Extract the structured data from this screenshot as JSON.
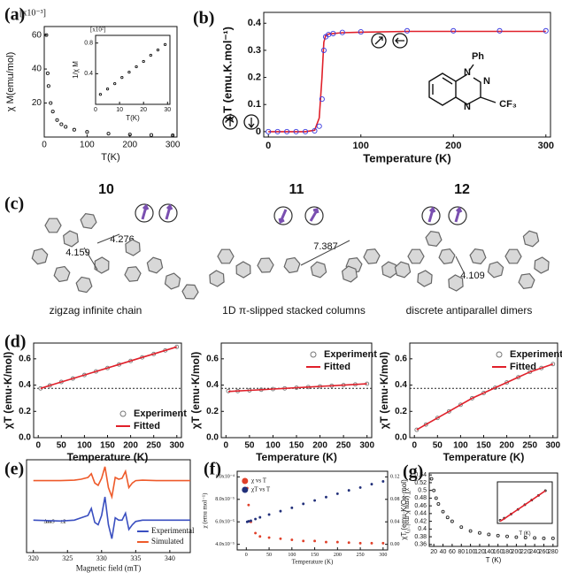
{
  "chart_data": [
    {
      "type": "line",
      "label": "(a)",
      "scale_label": "[x10⁻³]",
      "ylabel": "χ M(emu/mol)",
      "xlabel": "T(K)",
      "x": [
        5,
        8,
        10,
        15,
        20,
        30,
        40,
        50,
        70,
        100,
        150,
        200,
        250,
        300
      ],
      "series": [
        {
          "color": "#111111",
          "mode": "markers",
          "values": [
            60,
            37.5,
            30,
            20,
            15,
            10,
            7.5,
            6,
            4.3,
            3,
            2,
            1.5,
            1.2,
            1
          ]
        }
      ],
      "xlim": [
        0,
        310
      ],
      "ylim": [
        0,
        65
      ],
      "xticks": [
        0,
        100,
        200,
        300
      ],
      "yticks": [
        20,
        40,
        60
      ]
    },
    {
      "type": "line",
      "scale_label": "[x10²]",
      "ylabel": "1/χ M",
      "xlabel": "T(K)",
      "x": [
        2,
        5,
        8,
        11,
        14,
        17,
        20,
        23,
        26,
        29
      ],
      "series": [
        {
          "color": "#111111",
          "mode": "markers",
          "values": [
            0.13,
            0.2,
            0.27,
            0.35,
            0.42,
            0.49,
            0.56,
            0.64,
            0.71,
            0.78
          ]
        }
      ],
      "xlim": [
        0,
        31
      ],
      "ylim": [
        0,
        0.9
      ],
      "xticks": [
        0,
        10,
        20,
        30
      ],
      "yticks": [
        0.4,
        0.8
      ]
    },
    {
      "type": "line",
      "label": "(b)",
      "ylabel": "χ.T (emu.K.mol⁻¹)",
      "xlabel": "Temperature (K)",
      "x": [
        0,
        10,
        20,
        30,
        40,
        50,
        55,
        58,
        60,
        62,
        65,
        70,
        80,
        100,
        150,
        200,
        250,
        300
      ],
      "series": [
        {
          "color": "#e0202a",
          "mode": "line",
          "values": [
            0,
            0,
            0,
            0,
            0,
            0.005,
            0.05,
            0.2,
            0.33,
            0.355,
            0.36,
            0.362,
            0.365,
            0.367,
            0.37,
            0.37,
            0.37,
            0.37
          ]
        },
        {
          "color": "#3a3adf",
          "mode": "markers",
          "values": [
            0,
            0,
            0,
            0,
            0,
            0.003,
            0.02,
            0.12,
            0.3,
            0.35,
            0.358,
            0.362,
            0.366,
            0.368,
            0.372,
            0.372,
            0.372,
            0.372
          ]
        }
      ],
      "xlim": [
        -5,
        305
      ],
      "ylim": [
        -0.02,
        0.44
      ],
      "xticks": [
        0,
        100,
        200,
        300
      ],
      "yticks": [
        0,
        0.1,
        0.2,
        0.3,
        0.4
      ],
      "annotations": [
        "Ph",
        "N",
        "N",
        "N",
        "CF₃"
      ]
    },
    {
      "type": "line",
      "label": "(d)",
      "ylabel": "χT (emu·K/mol)",
      "xlabel": "Temperature (K)",
      "x": [
        5,
        25,
        50,
        75,
        100,
        125,
        150,
        175,
        200,
        225,
        250,
        275,
        300
      ],
      "series": [
        {
          "name": "Experiment",
          "color": "#777777",
          "mode": "markers",
          "values": [
            0.375,
            0.397,
            0.424,
            0.45,
            0.477,
            0.504,
            0.53,
            0.557,
            0.584,
            0.611,
            0.637,
            0.664,
            0.691
          ]
        },
        {
          "name": "Fitted",
          "color": "#e0202a",
          "mode": "line",
          "values": [
            0.375,
            0.397,
            0.424,
            0.45,
            0.477,
            0.504,
            0.53,
            0.557,
            0.584,
            0.611,
            0.637,
            0.664,
            0.691
          ]
        }
      ],
      "legend": "lower right",
      "hline": 0.375,
      "xlim": [
        -10,
        310
      ],
      "ylim": [
        0,
        0.72
      ],
      "xticks": [
        0,
        50,
        100,
        150,
        200,
        250,
        300
      ],
      "yticks": [
        {
          "value": 0,
          "label": "0.0"
        },
        0.2,
        0.4,
        0.6
      ]
    },
    {
      "type": "line",
      "ylabel": "χT (emu·K/mol)",
      "xlabel": "Temperature (K)",
      "x": [
        5,
        25,
        50,
        75,
        100,
        125,
        150,
        175,
        200,
        225,
        250,
        275,
        300
      ],
      "series": [
        {
          "name": "Experiment",
          "color": "#777777",
          "mode": "markers",
          "values": [
            0.355,
            0.355,
            0.36,
            0.365,
            0.37,
            0.375,
            0.38,
            0.385,
            0.39,
            0.395,
            0.4,
            0.405,
            0.41
          ]
        },
        {
          "name": "Fitted",
          "color": "#e0202a",
          "mode": "line",
          "values": [
            0.351,
            0.355,
            0.36,
            0.365,
            0.37,
            0.375,
            0.38,
            0.385,
            0.39,
            0.395,
            0.4,
            0.405,
            0.41
          ]
        }
      ],
      "legend": "upper right",
      "hline": 0.375,
      "xlim": [
        -10,
        310
      ],
      "ylim": [
        0,
        0.72
      ],
      "xticks": [
        0,
        50,
        100,
        150,
        200,
        250,
        300
      ],
      "yticks": [
        {
          "value": 0,
          "label": "0.0"
        },
        0.2,
        0.4,
        0.6
      ]
    },
    {
      "type": "line",
      "ylabel": "χT (emu·K/mol)",
      "xlabel": "Temperature (K)",
      "x": [
        5,
        25,
        50,
        75,
        100,
        125,
        150,
        175,
        200,
        225,
        250,
        275,
        300
      ],
      "series": [
        {
          "name": "Experiment",
          "color": "#777777",
          "mode": "markers",
          "values": [
            0.06,
            0.1,
            0.15,
            0.2,
            0.25,
            0.3,
            0.34,
            0.38,
            0.42,
            0.46,
            0.5,
            0.53,
            0.56
          ]
        },
        {
          "name": "Fitted",
          "color": "#e0202a",
          "mode": "line",
          "values": [
            0.06,
            0.1,
            0.15,
            0.2,
            0.25,
            0.3,
            0.34,
            0.38,
            0.42,
            0.46,
            0.5,
            0.53,
            0.56
          ]
        }
      ],
      "legend": "upper right",
      "hline": 0.375,
      "xlim": [
        -10,
        310
      ],
      "ylim": [
        0,
        0.72
      ],
      "xticks": [
        0,
        50,
        100,
        150,
        200,
        250,
        300
      ],
      "yticks": [
        {
          "value": 0,
          "label": "0.0"
        },
        0.2,
        0.4,
        0.6
      ]
    },
    {
      "type": "line",
      "label": "(e)",
      "xlabel": "Magnetic field (mT)",
      "x": [
        320,
        324,
        326,
        327,
        328,
        328.5,
        329,
        329.5,
        330,
        330.5,
        331,
        331.5,
        332,
        332.5,
        333,
        333.5,
        334,
        334.5,
        335,
        336,
        338,
        340,
        343
      ],
      "series": [
        {
          "name": "Experimental",
          "color": "#3a4fc0",
          "mode": "line",
          "values": [
            -0.3,
            -0.32,
            -0.3,
            -0.25,
            -0.2,
            -0.05,
            -0.35,
            -0.4,
            -0.2,
            0.2,
            -0.4,
            -0.7,
            -0.25,
            -0.3,
            -0.3,
            -0.15,
            -0.5,
            -0.4,
            -0.33,
            -0.3,
            -0.3,
            -0.3,
            -0.3
          ]
        },
        {
          "name": "Simulated",
          "color": "#ee5a2a",
          "mode": "line",
          "values": [
            0.55,
            0.55,
            0.56,
            0.58,
            0.62,
            0.7,
            0.5,
            0.45,
            0.6,
            0.85,
            0.4,
            0.2,
            0.62,
            0.58,
            0.6,
            0.75,
            0.4,
            0.5,
            0.55,
            0.56,
            0.55,
            0.55,
            0.55
          ]
        }
      ],
      "legend": "lower right",
      "annotations": [
        "ΔmS = ±2"
      ],
      "xlim": [
        319,
        343
      ],
      "ylim": [
        -1,
        1
      ],
      "xticks": [
        320,
        325,
        330,
        335,
        340
      ]
    },
    {
      "type": "line",
      "label": "(f)",
      "ylabel": "χ (emu mol⁻¹)",
      "y2label": "χT (emu K mol⁻¹)",
      "xlabel": "Temperature (K)",
      "x": [
        2,
        5,
        10,
        20,
        30,
        50,
        75,
        100,
        125,
        150,
        175,
        200,
        225,
        250,
        275,
        300
      ],
      "series": [
        {
          "name": "χ vs T",
          "color": "#e0402a",
          "mode": "dots",
          "values": [
            9e-05,
            7.5e-05,
            6e-05,
            5e-05,
            4.7e-05,
            4.6e-05,
            4.5e-05,
            4.4e-05,
            4.3e-05,
            4.3e-05,
            4.2e-05,
            4.2e-05,
            4.15e-05,
            4.1e-05,
            4.1e-05,
            4.1e-05
          ]
        },
        {
          "name": "χT vs T",
          "color": "#22307a",
          "mode": "dots",
          "axis": "y2",
          "values": [
            0.04,
            0.041,
            0.042,
            0.045,
            0.048,
            0.053,
            0.059,
            0.065,
            0.072,
            0.078,
            0.084,
            0.09,
            0.096,
            0.101,
            0.107,
            0.112
          ]
        }
      ],
      "legend": "upper left",
      "xlim": [
        -20,
        310
      ],
      "ylim": [
        3.5e-05,
        0.000105
      ],
      "y2lim": [
        -0.01,
        0.13
      ],
      "xticks": [
        0,
        50,
        100,
        150,
        200,
        250,
        300
      ],
      "yticks": [
        {
          "value": 4e-05,
          "label": "4.0x10⁻⁵"
        },
        {
          "value": 6e-05,
          "label": "6.0x10⁻⁵"
        },
        {
          "value": 8e-05,
          "label": "8.0x10⁻⁵"
        },
        {
          "value": 0.0001,
          "label": "1.0x10⁻⁴"
        }
      ],
      "y2ticks": [
        {
          "value": 0,
          "label": "0.00"
        },
        0.04,
        0.08,
        0.12
      ]
    },
    {
      "type": "line",
      "label": "(g)",
      "ylabel": "χT (emu·K/Oe·mol)",
      "xlabel": "T (K)",
      "x": [
        15,
        20,
        25,
        30,
        40,
        50,
        60,
        80,
        100,
        120,
        140,
        160,
        180,
        200,
        220,
        240,
        260,
        280
      ],
      "series": [
        {
          "color": "#222222",
          "mode": "markers",
          "values": [
            0.53,
            0.5,
            0.48,
            0.465,
            0.445,
            0.43,
            0.42,
            0.405,
            0.395,
            0.39,
            0.386,
            0.383,
            0.381,
            0.379,
            0.378,
            0.377,
            0.376,
            0.376
          ]
        }
      ],
      "xlim": [
        10,
        290
      ],
      "ylim": [
        0.355,
        0.545
      ],
      "xticks": [
        20,
        40,
        60,
        80,
        100,
        120,
        140,
        160,
        180,
        200,
        220,
        240,
        260,
        280
      ],
      "yticks": [
        0.36,
        0.38,
        0.4,
        0.42,
        0.44,
        0.46,
        0.48,
        0.5,
        0.52,
        0.54
      ]
    },
    {
      "type": "line",
      "xlabel": "T (K)",
      "x": [
        2,
        5,
        10,
        15,
        20,
        25,
        30,
        35
      ],
      "series": [
        {
          "color": "#222222",
          "mode": "markers",
          "values": [
            6,
            10,
            18,
            27,
            36,
            45,
            54,
            63
          ]
        },
        {
          "color": "#e0202a",
          "mode": "line",
          "values": [
            4,
            9,
            18,
            27,
            36,
            45,
            54,
            63
          ]
        }
      ],
      "xlim": [
        0,
        40
      ],
      "ylim": [
        0,
        80
      ]
    }
  ],
  "structures": {
    "label": "(c)",
    "items": [
      {
        "number": "10",
        "distances": [
          4.159,
          4.276
        ],
        "caption": "zigzag infinite chain"
      },
      {
        "number": "11",
        "distances": [
          7.387
        ],
        "caption": "1D π-slipped stacked columns"
      },
      {
        "number": "12",
        "distances": [
          4.109
        ],
        "caption": "discrete antiparallel dimers"
      }
    ]
  }
}
